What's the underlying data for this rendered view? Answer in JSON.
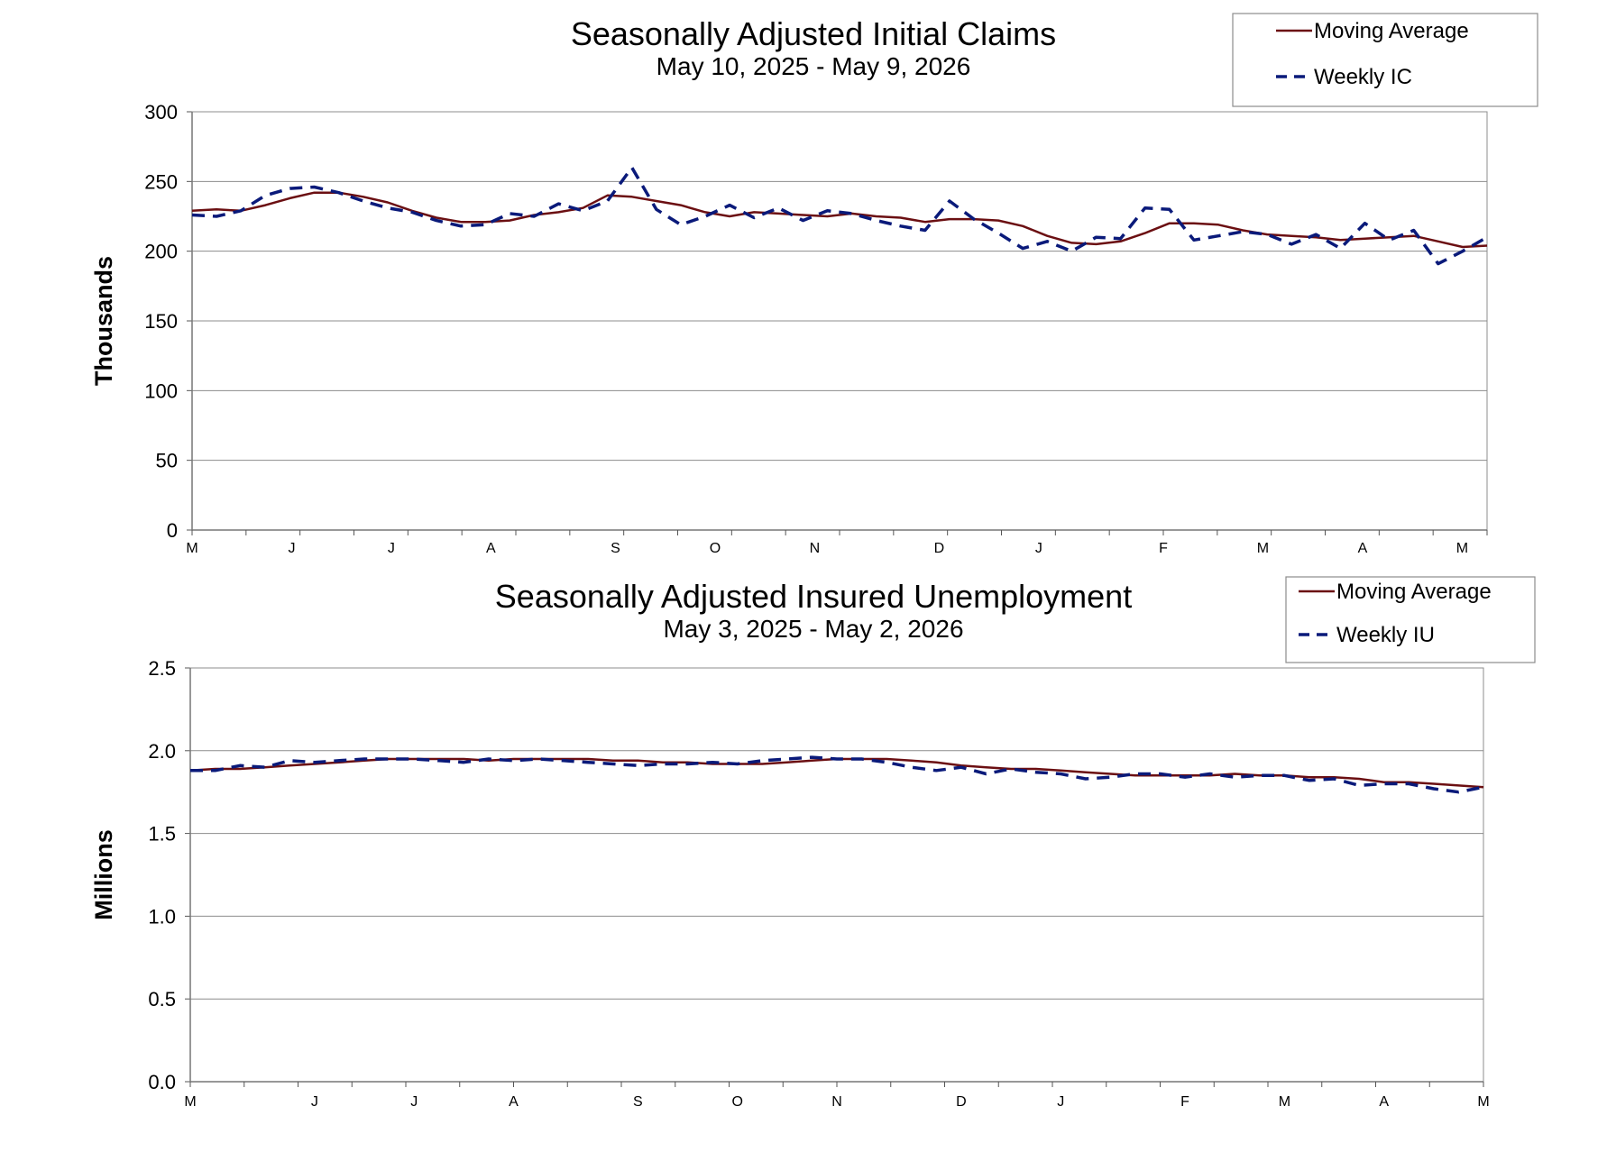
{
  "chart_data": [
    {
      "type": "line",
      "title": "Seasonally Adjusted Initial Claims",
      "subtitle": "May 10, 2025 - May 9, 2026",
      "ylabel": "Thousands",
      "ylim": [
        0,
        300
      ],
      "yticks": [
        0,
        50,
        100,
        150,
        200,
        250,
        300
      ],
      "grid": true,
      "legend": "top-right",
      "x_tick_labels": [
        {
          "week": 0,
          "label": "M"
        },
        {
          "week": 4,
          "label": "J"
        },
        {
          "week": 8,
          "label": "J"
        },
        {
          "week": 12,
          "label": "A"
        },
        {
          "week": 17,
          "label": "S"
        },
        {
          "week": 21,
          "label": "O"
        },
        {
          "week": 25,
          "label": "N"
        },
        {
          "week": 30,
          "label": "D"
        },
        {
          "week": 34,
          "label": "J"
        },
        {
          "week": 39,
          "label": "F"
        },
        {
          "week": 43,
          "label": "M"
        },
        {
          "week": 47,
          "label": "A"
        },
        {
          "week": 51,
          "label": "M"
        }
      ],
      "x_weeks": 52,
      "series": [
        {
          "name": "Moving Average",
          "color": "#6b0f12",
          "style": "solid",
          "values": [
            229,
            230,
            229,
            233,
            238,
            242,
            242,
            239,
            235,
            229,
            224,
            221,
            221,
            222,
            226,
            228,
            231,
            240,
            239,
            236,
            233,
            228,
            225,
            228,
            227,
            226,
            225,
            227,
            225,
            224,
            221,
            223,
            223,
            222,
            218,
            211,
            206,
            205,
            207,
            213,
            220,
            220,
            219,
            215,
            212,
            211,
            210,
            208,
            209,
            210,
            211,
            207,
            203,
            204
          ]
        },
        {
          "name": "Weekly IC",
          "color": "#0a1a7a",
          "style": "dashed",
          "values": [
            226,
            225,
            229,
            240,
            245,
            246,
            242,
            236,
            231,
            228,
            222,
            218,
            219,
            227,
            225,
            234,
            229,
            236,
            260,
            230,
            219,
            225,
            233,
            224,
            231,
            222,
            229,
            227,
            222,
            218,
            215,
            236,
            223,
            213,
            202,
            207,
            200,
            210,
            209,
            231,
            230,
            208,
            211,
            214,
            212,
            205,
            212,
            202,
            220,
            208,
            215,
            191,
            200,
            210
          ]
        }
      ]
    },
    {
      "type": "line",
      "title": "Seasonally Adjusted Insured Unemployment",
      "subtitle": "May 3, 2025 - May 2, 2026",
      "ylabel": "Millions",
      "ylim": [
        0,
        2.5
      ],
      "yticks": [
        "0.0",
        "0.5",
        "1.0",
        "1.5",
        "2.0",
        "2.5"
      ],
      "grid": true,
      "legend": "top-right",
      "x_tick_labels": [
        {
          "week": 0,
          "label": "M"
        },
        {
          "week": 5,
          "label": "J"
        },
        {
          "week": 9,
          "label": "J"
        },
        {
          "week": 13,
          "label": "A"
        },
        {
          "week": 18,
          "label": "S"
        },
        {
          "week": 22,
          "label": "O"
        },
        {
          "week": 26,
          "label": "N"
        },
        {
          "week": 31,
          "label": "D"
        },
        {
          "week": 35,
          "label": "J"
        },
        {
          "week": 40,
          "label": "F"
        },
        {
          "week": 44,
          "label": "M"
        },
        {
          "week": 48,
          "label": "A"
        },
        {
          "week": 52,
          "label": "M"
        }
      ],
      "x_weeks": 52,
      "series": [
        {
          "name": "Moving Average",
          "color": "#6b0f12",
          "style": "solid",
          "values": [
            1.88,
            1.89,
            1.89,
            1.9,
            1.91,
            1.92,
            1.93,
            1.94,
            1.95,
            1.95,
            1.95,
            1.95,
            1.94,
            1.95,
            1.95,
            1.95,
            1.95,
            1.94,
            1.94,
            1.93,
            1.93,
            1.92,
            1.92,
            1.92,
            1.93,
            1.94,
            1.95,
            1.95,
            1.95,
            1.94,
            1.93,
            1.91,
            1.9,
            1.89,
            1.89,
            1.88,
            1.87,
            1.86,
            1.85,
            1.85,
            1.85,
            1.85,
            1.86,
            1.85,
            1.85,
            1.84,
            1.84,
            1.83,
            1.81,
            1.81,
            1.8,
            1.79,
            1.78
          ]
        },
        {
          "name": "Weekly IU",
          "color": "#0a1a7a",
          "style": "dashed",
          "values": [
            1.88,
            1.88,
            1.91,
            1.9,
            1.94,
            1.93,
            1.94,
            1.95,
            1.95,
            1.95,
            1.94,
            1.93,
            1.95,
            1.94,
            1.95,
            1.94,
            1.93,
            1.92,
            1.91,
            1.92,
            1.92,
            1.93,
            1.92,
            1.94,
            1.95,
            1.96,
            1.95,
            1.95,
            1.93,
            1.9,
            1.88,
            1.9,
            1.86,
            1.89,
            1.87,
            1.86,
            1.83,
            1.84,
            1.86,
            1.86,
            1.84,
            1.86,
            1.84,
            1.85,
            1.85,
            1.82,
            1.83,
            1.79,
            1.8,
            1.8,
            1.77,
            1.75,
            1.78
          ]
        }
      ]
    }
  ]
}
